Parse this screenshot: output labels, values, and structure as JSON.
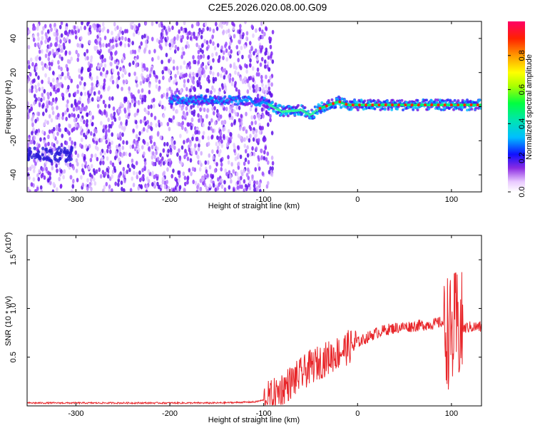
{
  "title": "C2E5.2026.020.08.00.G09",
  "colors": {
    "snr_line": "#e8262a",
    "frame": "#000000"
  },
  "colorbar": {
    "label": "Normalized spectral amplitude",
    "ticks": [
      "0.0",
      "0.2",
      "0.4",
      "0.6",
      "0.8"
    ],
    "tick_values": [
      0.0,
      0.2,
      0.4,
      0.6,
      0.8
    ],
    "range": [
      0,
      1
    ]
  },
  "chart_data": [
    {
      "type": "heatmap",
      "xlabel": "Height of straight line (km)",
      "ylabel": "Frequency (Hz)",
      "xlim": [
        -352,
        132
      ],
      "ylim": [
        -50,
        50
      ],
      "xticks": [
        -300,
        -200,
        -100,
        0,
        100
      ],
      "xtick_labels": [
        "-300",
        "-200",
        "-100",
        "0",
        "100"
      ],
      "yticks": [
        -40,
        -20,
        0,
        20,
        40
      ],
      "ytick_labels": [
        "-40",
        "-20",
        "0",
        "20",
        "40"
      ],
      "noise_region": [
        -352,
        -90
      ],
      "signal_track": {
        "x": [
          -200,
          -150,
          -100,
          -80,
          -60,
          -50,
          -40,
          -30,
          -20,
          -10,
          0,
          50,
          90,
          100,
          132
        ],
        "y": [
          4,
          4,
          3,
          -3,
          -2,
          -5,
          -1,
          1,
          3,
          1,
          1,
          1,
          1,
          1,
          1
        ]
      }
    },
    {
      "type": "line",
      "xlabel": "Height of straight line (km)",
      "ylabel": "SNR (10 * v/v)",
      "y_multiplier": "(x10",
      "y_multiplier_exp": "4",
      "xlim": [
        -352,
        132
      ],
      "ylim": [
        0,
        1.75
      ],
      "xticks": [
        -300,
        -200,
        -100,
        0,
        100
      ],
      "xtick_labels": [
        "-300",
        "-200",
        "-100",
        "0",
        "100"
      ],
      "yticks": [
        0.5,
        1.0,
        1.5
      ],
      "ytick_labels": [
        "0.5",
        "1.0",
        "1.5"
      ],
      "series": [
        {
          "x": [
            -352,
            -300,
            -250,
            -200,
            -150,
            -110,
            -100,
            -90,
            -80,
            -70,
            -60,
            -50,
            -40,
            -30,
            -20,
            -10,
            0,
            10,
            20,
            30,
            40,
            50,
            60,
            70,
            80,
            90,
            95,
            100,
            105,
            110,
            115,
            120,
            132
          ],
          "y": [
            0.03,
            0.03,
            0.03,
            0.03,
            0.03,
            0.04,
            0.06,
            0.1,
            0.18,
            0.25,
            0.32,
            0.4,
            0.45,
            0.5,
            0.55,
            0.6,
            0.65,
            0.7,
            0.75,
            0.78,
            0.8,
            0.81,
            0.82,
            0.83,
            0.84,
            0.86,
            0.8,
            0.7,
            0.82,
            0.78,
            0.8,
            0.81,
            0.81
          ]
        }
      ]
    }
  ]
}
